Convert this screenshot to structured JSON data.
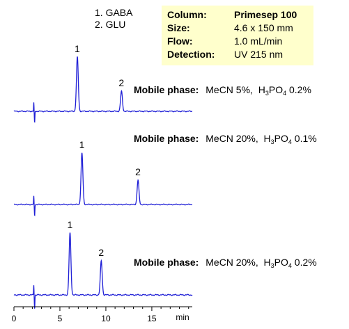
{
  "legend": {
    "items": [
      "1. GABA",
      "2. GLU"
    ]
  },
  "conditions": {
    "rows": [
      {
        "key": "Column:",
        "value": "Primesep 100",
        "bold": true
      },
      {
        "key": "Size:",
        "value": "4.6 x 150 mm",
        "bold": false
      },
      {
        "key": "Flow:",
        "value": "1.0 mL/min",
        "bold": false
      },
      {
        "key": "Detection:",
        "value": "UV 215 nm",
        "bold": false
      }
    ]
  },
  "mobile_phase_label": "Mobile phase:",
  "chart_data": {
    "type": "line",
    "xlabel": "min",
    "xlim": [
      0,
      19.4
    ],
    "xticks": [
      0,
      5,
      10,
      15
    ],
    "series": [
      {
        "mobile_phase": {
          "mecn": "MeCN 5%,",
          "acid_prefix": "H",
          "acid_sub1": "3",
          "acid_mid": "PO",
          "acid_sub2": "4",
          "acid_conc": " 0.2%"
        },
        "peaks": [
          {
            "label": "1",
            "rt": 6.9,
            "height": 1.0
          },
          {
            "label": "2",
            "rt": 11.7,
            "height": 0.37
          }
        ]
      },
      {
        "mobile_phase": {
          "mecn": "MeCN 20%,",
          "acid_prefix": "H",
          "acid_sub1": "3",
          "acid_mid": "PO",
          "acid_sub2": "4",
          "acid_conc": " 0.1%"
        },
        "peaks": [
          {
            "label": "1",
            "rt": 7.4,
            "height": 1.0
          },
          {
            "label": "2",
            "rt": 13.5,
            "height": 0.47
          }
        ]
      },
      {
        "mobile_phase": {
          "mecn": "MeCN 20%,",
          "acid_prefix": "H",
          "acid_sub1": "3",
          "acid_mid": "PO",
          "acid_sub2": "4",
          "acid_conc": " 0.2%"
        },
        "peaks": [
          {
            "label": "1",
            "rt": 6.1,
            "height": 1.0
          },
          {
            "label": "2",
            "rt": 9.5,
            "height": 0.55
          }
        ]
      }
    ],
    "grid": false
  }
}
